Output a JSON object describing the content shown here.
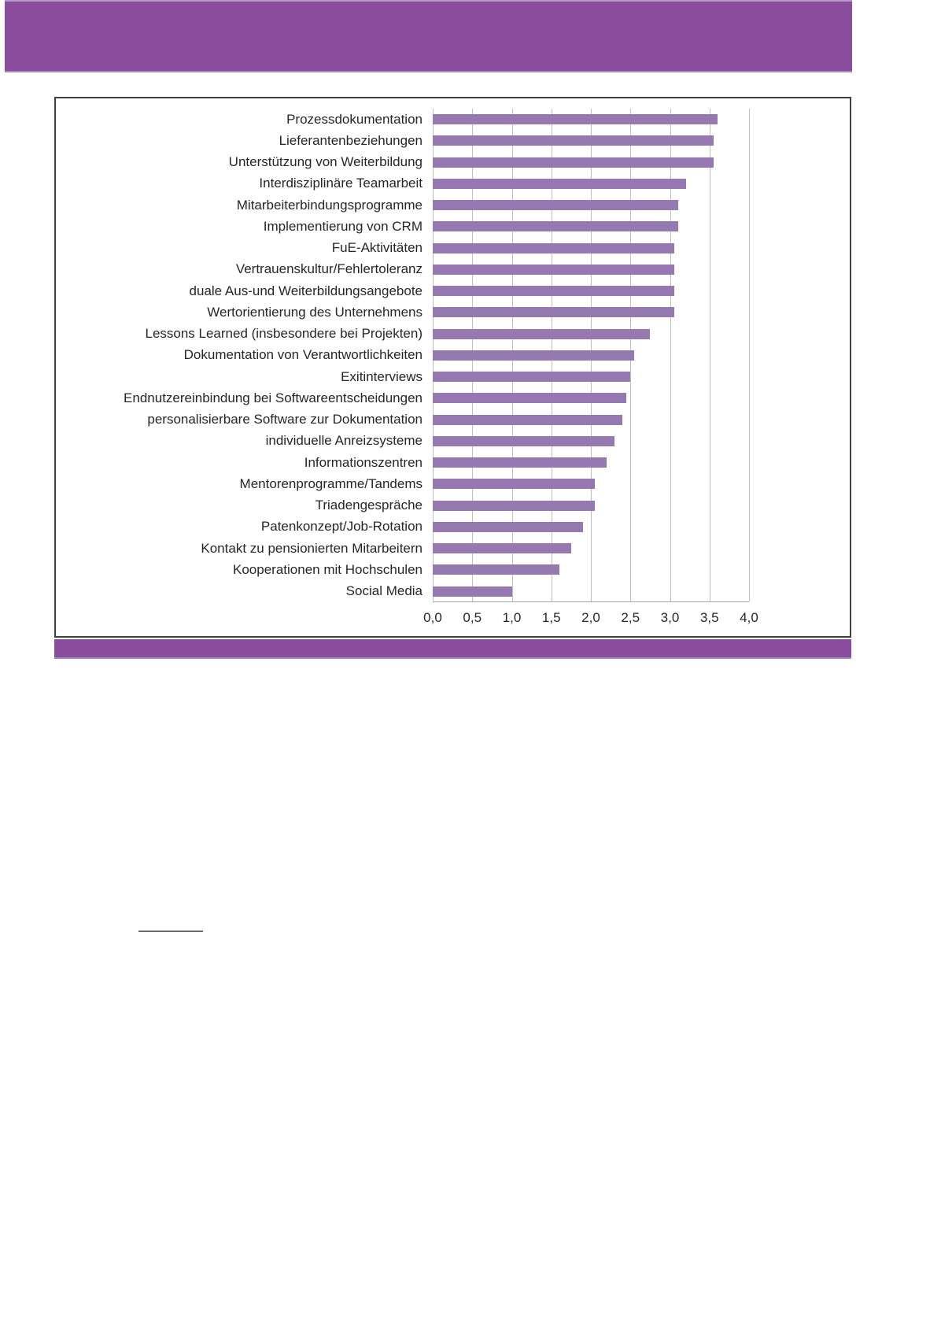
{
  "page": {
    "background_color": "#ffffff",
    "band_color": "#8a4c9d",
    "band_edge_color": "#a58cbe"
  },
  "chart_data": {
    "type": "bar",
    "orientation": "horizontal",
    "title": "",
    "xlabel": "",
    "ylabel": "",
    "legend": "none",
    "grid": "vertical",
    "xlim": [
      0,
      4
    ],
    "x_tick_values": [
      0,
      0.5,
      1,
      1.5,
      2,
      2.5,
      3,
      3.5,
      4
    ],
    "x_ticks": [
      "0,0",
      "0,5",
      "1,0",
      "1,5",
      "2,0",
      "2,5",
      "3,0",
      "3,5",
      "4,0"
    ],
    "categories": [
      "Prozessdokumentation",
      "Lieferantenbeziehungen",
      "Unterstützung von Weiterbildung",
      "Interdisziplinäre Teamarbeit",
      "Mitarbeiterbindungsprogramme",
      "Implementierung von CRM",
      "FuE-Aktivitäten",
      "Vertrauenskultur/Fehlertoleranz",
      "duale Aus-und Weiterbildungsangebote",
      "Wertorientierung des Unternehmens",
      "Lessons Learned (insbesondere bei Projekten)",
      "Dokumentation von Verantwortlichkeiten",
      "Exitinterviews",
      "Endnutzereinbindung bei Softwareentscheidungen",
      "personalisierbare Software zur Dokumentation",
      "individuelle Anreizsysteme",
      "Informationszentren",
      "Mentorenprogramme/Tandems",
      "Triadengespräche",
      "Patenkonzept/Job-Rotation",
      "Kontakt zu pensionierten Mitarbeitern",
      "Kooperationen mit Hochschulen",
      "Social Media"
    ],
    "values": [
      3.6,
      3.55,
      3.55,
      3.2,
      3.1,
      3.1,
      3.05,
      3.05,
      3.05,
      3.05,
      2.75,
      2.55,
      2.5,
      2.45,
      2.4,
      2.3,
      2.2,
      2.05,
      2.05,
      1.9,
      1.75,
      1.6,
      1.0
    ],
    "bar_color": "#9779b1",
    "gridline_color": "#bfbfbf",
    "axis_line_color": "#a6a6a6",
    "frame_border_color": "#3f3f3f",
    "text_color": "#262626"
  }
}
